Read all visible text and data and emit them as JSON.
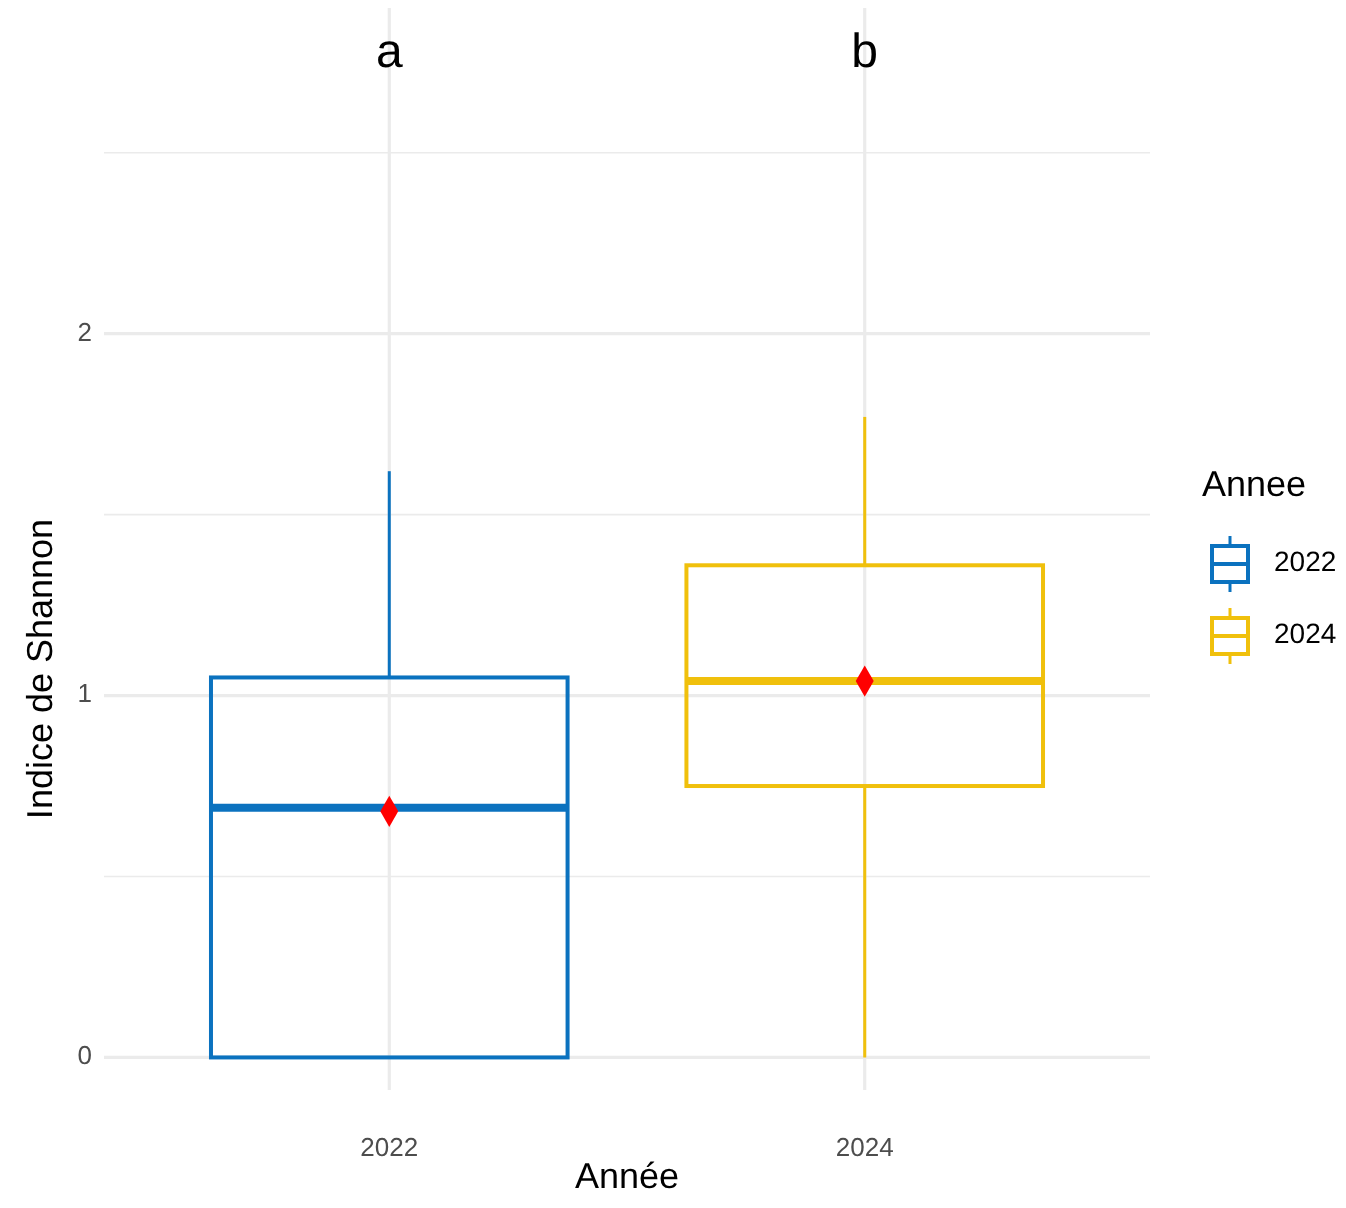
{
  "chart_data": {
    "type": "box",
    "xlabel": "Année",
    "ylabel": "Indice de Shannon",
    "legend_title": "Annee",
    "legend": "right",
    "grid": true,
    "marker": "diamond",
    "categories": [
      "2022",
      "2024"
    ],
    "ylim": [
      -0.09,
      2.9
    ],
    "yticks": [
      0,
      {
        "value": 0.5,
        "label": null
      },
      1,
      {
        "value": 1.5,
        "label": null
      },
      2,
      {
        "value": 2.5,
        "label": null
      }
    ],
    "series": [
      {
        "name": "2022",
        "color": "#0b72bf",
        "boxes": [
          {
            "low": 0,
            "q1": 0,
            "median": 0.69,
            "q3": 1.05,
            "high": 1.62,
            "mean": 0.68
          },
          null
        ]
      },
      {
        "name": "2024",
        "color": "#f0c00c",
        "boxes": [
          null,
          {
            "low": 0,
            "q1": 0.75,
            "median": 1.04,
            "q3": 1.36,
            "high": 1.77,
            "mean": 1.04
          }
        ]
      }
    ],
    "annotations": [
      "a",
      "b"
    ]
  }
}
